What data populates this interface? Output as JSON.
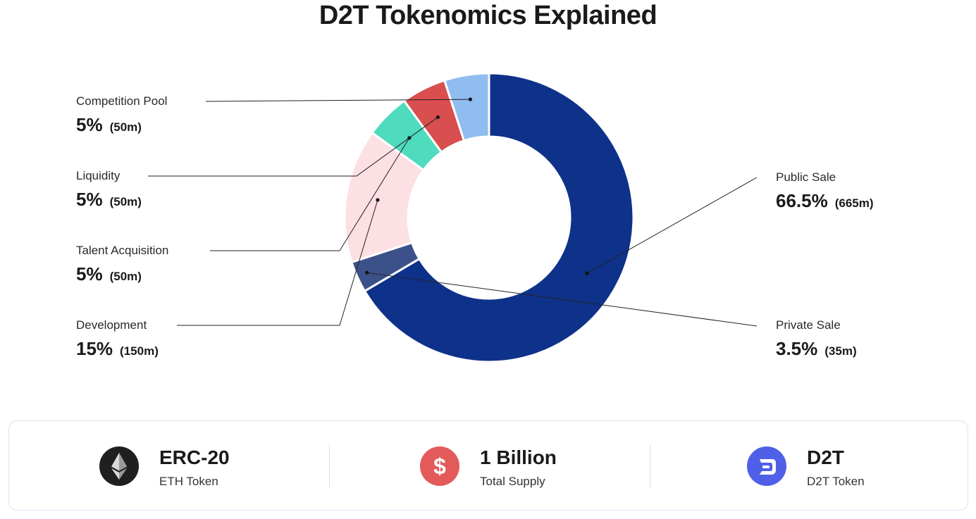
{
  "title": "D2T Tokenomics Explained",
  "chart_data": {
    "type": "pie",
    "variant": "donut",
    "start_angle_deg": 0,
    "series": [
      {
        "label": "Public Sale",
        "percent_text": "66.5%",
        "amount_text": "(665m)",
        "value": 66.5,
        "color": "#0e318a"
      },
      {
        "label": "Private Sale",
        "percent_text": "3.5%",
        "amount_text": "(35m)",
        "value": 3.5,
        "color": "#3c5189"
      },
      {
        "label": "Development",
        "percent_text": "15%",
        "amount_text": "(150m)",
        "value": 15,
        "color": "#fde0e3"
      },
      {
        "label": "Talent Acquisition",
        "percent_text": "5%",
        "amount_text": "(50m)",
        "value": 5,
        "color": "#4fdbbd"
      },
      {
        "label": "Liquidity",
        "percent_text": "5%",
        "amount_text": "(50m)",
        "value": 5,
        "color": "#d94e4e"
      },
      {
        "label": "Competition Pool",
        "percent_text": "5%",
        "amount_text": "(50m)",
        "value": 5,
        "color": "#8fbdf0"
      }
    ]
  },
  "info": [
    {
      "title": "ERC-20",
      "subtitle": "ETH Token",
      "icon": "ethereum-icon",
      "color": "#1f1f1f"
    },
    {
      "title": "1 Billion",
      "subtitle": "Total Supply",
      "icon": "dollar-icon",
      "color": "#e35a5a"
    },
    {
      "title": "D2T",
      "subtitle": "D2T Token",
      "icon": "d2t-logo-icon",
      "color": "#4f5fe8"
    }
  ]
}
